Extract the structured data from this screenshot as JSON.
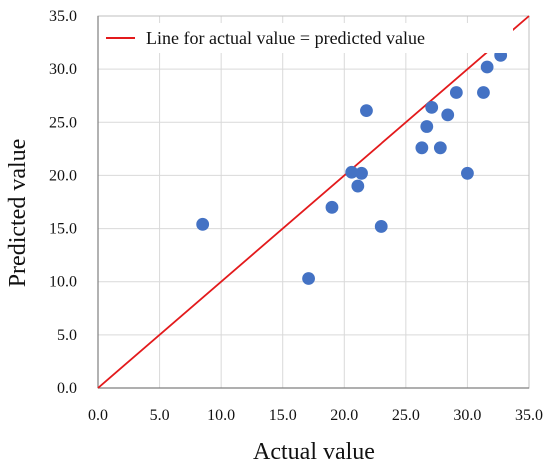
{
  "chart_data": {
    "type": "scatter",
    "xlabel": "Actual value",
    "ylabel": "Predicted value",
    "xlim": [
      0,
      35
    ],
    "ylim": [
      0,
      35
    ],
    "x_ticks": [
      "0.0",
      "5.0",
      "10.0",
      "15.0",
      "20.0",
      "25.0",
      "30.0",
      "35.0"
    ],
    "y_ticks": [
      "0.0",
      "5.0",
      "10.0",
      "15.0",
      "20.0",
      "25.0",
      "30.0",
      "35.0"
    ],
    "grid": true,
    "legend": {
      "position": "top-left",
      "entries": [
        {
          "label": "Line for actual value = predicted value",
          "color": "#e31a1c"
        }
      ]
    },
    "reference_line": {
      "label": "Line for actual value = predicted value",
      "from": [
        0,
        0
      ],
      "to": [
        35,
        35
      ],
      "color": "#e31a1c"
    },
    "series": [
      {
        "color": "#4472c4",
        "points": [
          {
            "x": 8.5,
            "y": 15.4
          },
          {
            "x": 17.1,
            "y": 10.3
          },
          {
            "x": 19.0,
            "y": 17.0
          },
          {
            "x": 20.6,
            "y": 20.3
          },
          {
            "x": 21.1,
            "y": 19.0
          },
          {
            "x": 21.4,
            "y": 20.2
          },
          {
            "x": 21.8,
            "y": 26.1
          },
          {
            "x": 23.0,
            "y": 15.2
          },
          {
            "x": 26.3,
            "y": 22.6
          },
          {
            "x": 26.7,
            "y": 24.6
          },
          {
            "x": 27.1,
            "y": 26.4
          },
          {
            "x": 27.8,
            "y": 22.6
          },
          {
            "x": 28.4,
            "y": 25.7
          },
          {
            "x": 29.1,
            "y": 27.8
          },
          {
            "x": 30.0,
            "y": 20.2
          },
          {
            "x": 31.3,
            "y": 27.8
          },
          {
            "x": 31.6,
            "y": 30.2
          },
          {
            "x": 32.7,
            "y": 31.3
          }
        ]
      }
    ]
  }
}
